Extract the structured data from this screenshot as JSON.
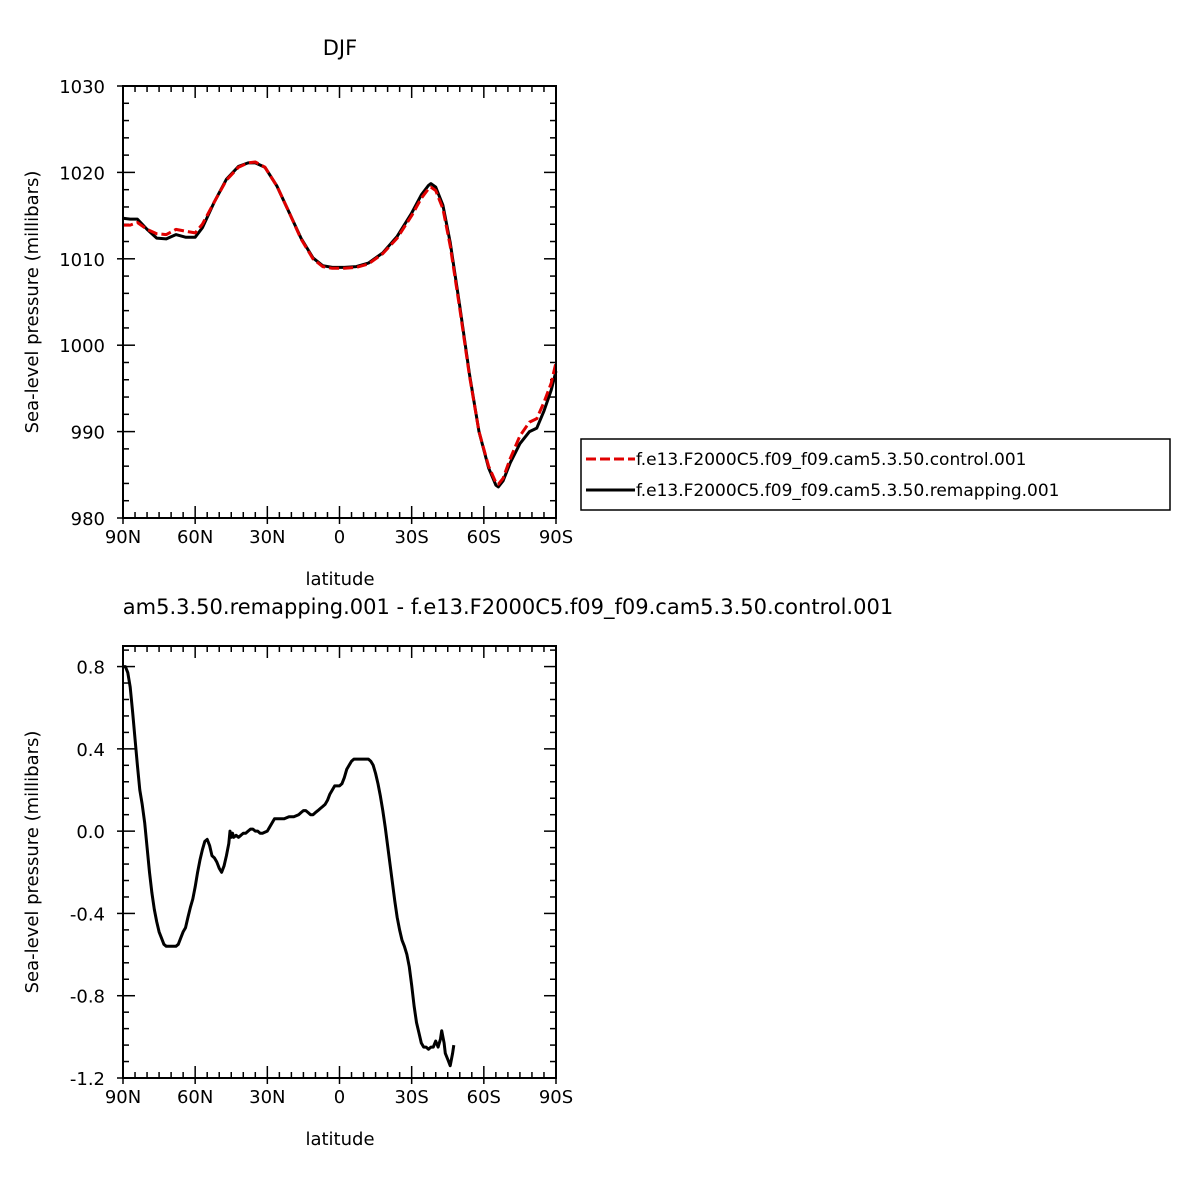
{
  "chart_data": [
    {
      "type": "line",
      "title": "DJF",
      "xlabel": "latitude",
      "ylabel": "Sea-level pressure (millibars)",
      "xlim": [
        90,
        -90
      ],
      "ylim": [
        980,
        1030
      ],
      "x_ticks": [
        90,
        60,
        30,
        0,
        -30,
        -60,
        -90
      ],
      "x_tick_labels": [
        "90N",
        "60N",
        "30N",
        "0",
        "30S",
        "60S",
        "90S"
      ],
      "y_ticks": [
        980,
        990,
        1000,
        1010,
        1020,
        1030
      ],
      "y_tick_labels": [
        "980",
        "990",
        "1000",
        "1010",
        "1020",
        "1030"
      ],
      "legend_position": "right",
      "series": [
        {
          "name": "f.e13.F2000C5.f09_f09.cam5.3.50.control.001",
          "color": "#e00000",
          "dash": "dashed",
          "points": [
            [
              90,
              1013.9
            ],
            [
              87,
              1013.9
            ],
            [
              84,
              1014.2
            ],
            [
              80,
              1013.4
            ],
            [
              76,
              1012.9
            ],
            [
              72,
              1012.8
            ],
            [
              68,
              1013.4
            ],
            [
              64,
              1013.2
            ],
            [
              60,
              1013.0
            ],
            [
              57,
              1014.0
            ],
            [
              52,
              1016.6
            ],
            [
              47,
              1019.1
            ],
            [
              42,
              1020.6
            ],
            [
              38,
              1021.1
            ],
            [
              35,
              1021.2
            ],
            [
              31,
              1020.6
            ],
            [
              26,
              1018.4
            ],
            [
              21,
              1015.4
            ],
            [
              16,
              1012.3
            ],
            [
              11,
              1010.0
            ],
            [
              7,
              1009.1
            ],
            [
              3,
              1008.9
            ],
            [
              -2,
              1008.9
            ],
            [
              -7,
              1009.0
            ],
            [
              -12,
              1009.4
            ],
            [
              -18,
              1010.6
            ],
            [
              -24,
              1012.4
            ],
            [
              -30,
              1015.0
            ],
            [
              -34,
              1017.0
            ],
            [
              -37,
              1018.1
            ],
            [
              -38,
              1018.3
            ],
            [
              -40,
              1017.9
            ],
            [
              -43,
              1015.8
            ],
            [
              -46,
              1011.5
            ],
            [
              -50,
              1004.2
            ],
            [
              -54,
              996.5
            ],
            [
              -58,
              990.0
            ],
            [
              -62,
              986.0
            ],
            [
              -65,
              984.1
            ],
            [
              -66,
              983.9
            ],
            [
              -68,
              984.6
            ],
            [
              -71,
              986.9
            ],
            [
              -75,
              989.5
            ],
            [
              -79,
              991.1
            ],
            [
              -82,
              991.5
            ],
            [
              -85,
              993.4
            ],
            [
              -88,
              995.6
            ],
            [
              -90,
              998.0
            ]
          ]
        },
        {
          "name": "f.e13.F2000C5.f09_f09.cam5.3.50.remapping.001",
          "color": "#000000",
          "dash": "solid",
          "points": [
            [
              90,
              1014.7
            ],
            [
              87,
              1014.6
            ],
            [
              84,
              1014.6
            ],
            [
              80,
              1013.4
            ],
            [
              76,
              1012.4
            ],
            [
              72,
              1012.3
            ],
            [
              68,
              1012.8
            ],
            [
              64,
              1012.5
            ],
            [
              60,
              1012.5
            ],
            [
              57,
              1013.6
            ],
            [
              52,
              1016.6
            ],
            [
              47,
              1019.2
            ],
            [
              42,
              1020.7
            ],
            [
              38,
              1021.1
            ],
            [
              35,
              1021.1
            ],
            [
              31,
              1020.6
            ],
            [
              26,
              1018.4
            ],
            [
              21,
              1015.4
            ],
            [
              16,
              1012.4
            ],
            [
              11,
              1010.1
            ],
            [
              7,
              1009.2
            ],
            [
              3,
              1009.0
            ],
            [
              -2,
              1009.0
            ],
            [
              -7,
              1009.1
            ],
            [
              -12,
              1009.5
            ],
            [
              -18,
              1010.7
            ],
            [
              -24,
              1012.6
            ],
            [
              -30,
              1015.3
            ],
            [
              -34,
              1017.4
            ],
            [
              -37,
              1018.5
            ],
            [
              -38,
              1018.7
            ],
            [
              -40,
              1018.3
            ],
            [
              -43,
              1016.2
            ],
            [
              -46,
              1011.9
            ],
            [
              -50,
              1004.5
            ],
            [
              -54,
              996.7
            ],
            [
              -58,
              990.0
            ],
            [
              -62,
              985.8
            ],
            [
              -65,
              983.8
            ],
            [
              -66,
              983.6
            ],
            [
              -68,
              984.3
            ],
            [
              -71,
              986.4
            ],
            [
              -75,
              988.6
            ],
            [
              -79,
              990.0
            ],
            [
              -82,
              990.4
            ],
            [
              -85,
              992.4
            ],
            [
              -88,
              994.8
            ],
            [
              -90,
              997.0
            ]
          ]
        }
      ]
    },
    {
      "type": "line",
      "title": "am5.3.50.remapping.001 - f.e13.F2000C5.f09_f09.cam5.3.50.control.001",
      "xlabel": "latitude",
      "ylabel": "Sea-level pressure (millibars)",
      "xlim": [
        90,
        -90
      ],
      "ylim": [
        -1.2,
        0.9
      ],
      "x_ticks": [
        90,
        60,
        30,
        0,
        -30,
        -60,
        -90
      ],
      "x_tick_labels": [
        "90N",
        "60N",
        "30N",
        "0",
        "30S",
        "60S",
        "90S"
      ],
      "y_ticks": [
        -1.2,
        -0.8,
        -0.4,
        0.0,
        0.4,
        0.8
      ],
      "y_tick_labels": [
        "-1.2",
        "-0.8",
        "-0.4",
        "0.0",
        "0.4",
        "0.8"
      ],
      "series": [
        {
          "color": "#000000",
          "dash": "solid",
          "points": [
            [
              90,
              0.8
            ],
            [
              89,
              0.8
            ],
            [
              88,
              0.77
            ],
            [
              87,
              0.7
            ],
            [
              86,
              0.58
            ],
            [
              85,
              0.45
            ],
            [
              84,
              0.32
            ],
            [
              83,
              0.2
            ],
            [
              82,
              0.13
            ],
            [
              81,
              0.04
            ],
            [
              80,
              -0.08
            ],
            [
              79,
              -0.2
            ],
            [
              78,
              -0.3
            ],
            [
              77,
              -0.38
            ],
            [
              76,
              -0.44
            ],
            [
              75,
              -0.49
            ],
            [
              74,
              -0.52
            ],
            [
              73,
              -0.55
            ],
            [
              72,
              -0.56
            ],
            [
              70,
              -0.56
            ],
            [
              68,
              -0.56
            ],
            [
              67,
              -0.55
            ],
            [
              66,
              -0.52
            ],
            [
              65,
              -0.49
            ],
            [
              64,
              -0.47
            ],
            [
              63,
              -0.42
            ],
            [
              62,
              -0.37
            ],
            [
              61,
              -0.33
            ],
            [
              60,
              -0.27
            ],
            [
              59,
              -0.2
            ],
            [
              58,
              -0.14
            ],
            [
              57,
              -0.09
            ],
            [
              56,
              -0.05
            ],
            [
              55,
              -0.04
            ],
            [
              54,
              -0.07
            ],
            [
              53,
              -0.12
            ],
            [
              52,
              -0.13
            ],
            [
              51,
              -0.15
            ],
            [
              50,
              -0.18
            ],
            [
              49,
              -0.2
            ],
            [
              48,
              -0.17
            ],
            [
              47,
              -0.12
            ],
            [
              46,
              -0.06
            ],
            [
              45.5,
              0.0
            ],
            [
              45,
              -0.03
            ],
            [
              44.5,
              -0.01
            ],
            [
              44,
              -0.03
            ],
            [
              43,
              -0.02
            ],
            [
              42,
              -0.03
            ],
            [
              41,
              -0.02
            ],
            [
              40,
              -0.01
            ],
            [
              39,
              -0.01
            ],
            [
              38,
              0.0
            ],
            [
              37,
              0.01
            ],
            [
              36,
              0.01
            ],
            [
              35,
              0.0
            ],
            [
              34,
              0.0
            ],
            [
              33,
              -0.01
            ],
            [
              32,
              -0.01
            ],
            [
              30,
              0.0
            ],
            [
              29,
              0.02
            ],
            [
              28,
              0.04
            ],
            [
              27,
              0.06
            ],
            [
              25,
              0.06
            ],
            [
              23,
              0.06
            ],
            [
              21,
              0.07
            ],
            [
              19,
              0.07
            ],
            [
              17,
              0.08
            ],
            [
              16,
              0.09
            ],
            [
              15,
              0.1
            ],
            [
              14,
              0.1
            ],
            [
              13,
              0.09
            ],
            [
              12,
              0.08
            ],
            [
              11,
              0.08
            ],
            [
              10,
              0.09
            ],
            [
              9,
              0.1
            ],
            [
              8,
              0.11
            ],
            [
              7,
              0.12
            ],
            [
              6,
              0.13
            ],
            [
              5,
              0.15
            ],
            [
              4,
              0.18
            ],
            [
              3,
              0.2
            ],
            [
              2,
              0.22
            ],
            [
              1,
              0.22
            ],
            [
              0,
              0.22
            ],
            [
              -1,
              0.23
            ],
            [
              -2,
              0.26
            ],
            [
              -3,
              0.3
            ],
            [
              -4,
              0.32
            ],
            [
              -5,
              0.34
            ],
            [
              -6,
              0.35
            ],
            [
              -8,
              0.35
            ],
            [
              -10,
              0.35
            ],
            [
              -12,
              0.35
            ],
            [
              -13,
              0.34
            ],
            [
              -14,
              0.32
            ],
            [
              -15,
              0.28
            ],
            [
              -16,
              0.23
            ],
            [
              -17,
              0.17
            ],
            [
              -18,
              0.1
            ],
            [
              -19,
              0.02
            ],
            [
              -20,
              -0.07
            ],
            [
              -21,
              -0.16
            ],
            [
              -22,
              -0.25
            ],
            [
              -23,
              -0.34
            ],
            [
              -24,
              -0.42
            ],
            [
              -25,
              -0.48
            ],
            [
              -26,
              -0.53
            ],
            [
              -27,
              -0.56
            ],
            [
              -28,
              -0.6
            ],
            [
              -29,
              -0.66
            ],
            [
              -30,
              -0.75
            ],
            [
              -31,
              -0.85
            ],
            [
              -32,
              -0.93
            ],
            [
              -33,
              -0.98
            ],
            [
              -34,
              -1.03
            ],
            [
              -35,
              -1.05
            ],
            [
              -36,
              -1.05
            ],
            [
              -37,
              -1.06
            ],
            [
              -38,
              -1.05
            ],
            [
              -39,
              -1.05
            ],
            [
              -40,
              -1.02
            ],
            [
              -41,
              -1.05
            ],
            [
              -42,
              -1.01
            ],
            [
              -42.5,
              -0.97
            ],
            [
              -43,
              -1.0
            ],
            [
              -43.5,
              -1.03
            ],
            [
              -44,
              -1.08
            ],
            [
              -45,
              -1.11
            ],
            [
              -46,
              -1.14
            ],
            [
              -47,
              -1.08
            ],
            [
              -47.5,
              -1.04
            ]
          ]
        }
      ]
    }
  ]
}
